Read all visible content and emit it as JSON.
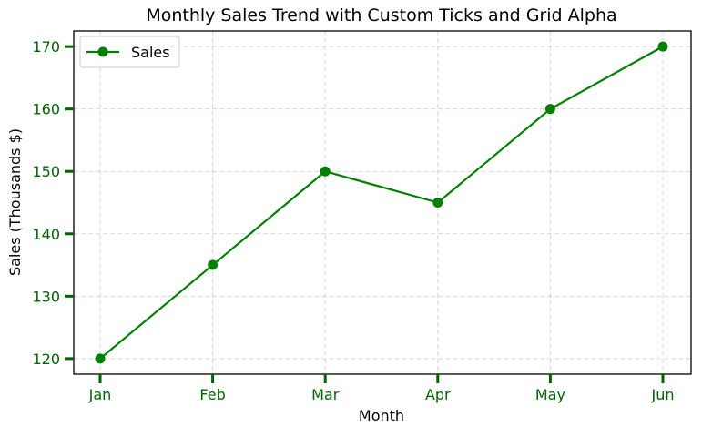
{
  "chart_data": {
    "type": "line",
    "title": "Monthly Sales Trend with Custom Ticks and Grid Alpha",
    "xlabel": "Month",
    "ylabel": "Sales (Thousands $)",
    "categories": [
      "Jan",
      "Feb",
      "Mar",
      "Apr",
      "May",
      "Jun"
    ],
    "series": [
      {
        "name": "Sales",
        "values": [
          120,
          135,
          150,
          145,
          160,
          170
        ],
        "color": "#008000",
        "marker": "circle"
      }
    ],
    "ylim": [
      117.5,
      172.5
    ],
    "yticks": [
      120,
      130,
      140,
      150,
      160,
      170
    ],
    "grid": true,
    "grid_style": "dashed",
    "legend": "top-left",
    "tick_color": "#006400",
    "axis_color": "#000000"
  }
}
